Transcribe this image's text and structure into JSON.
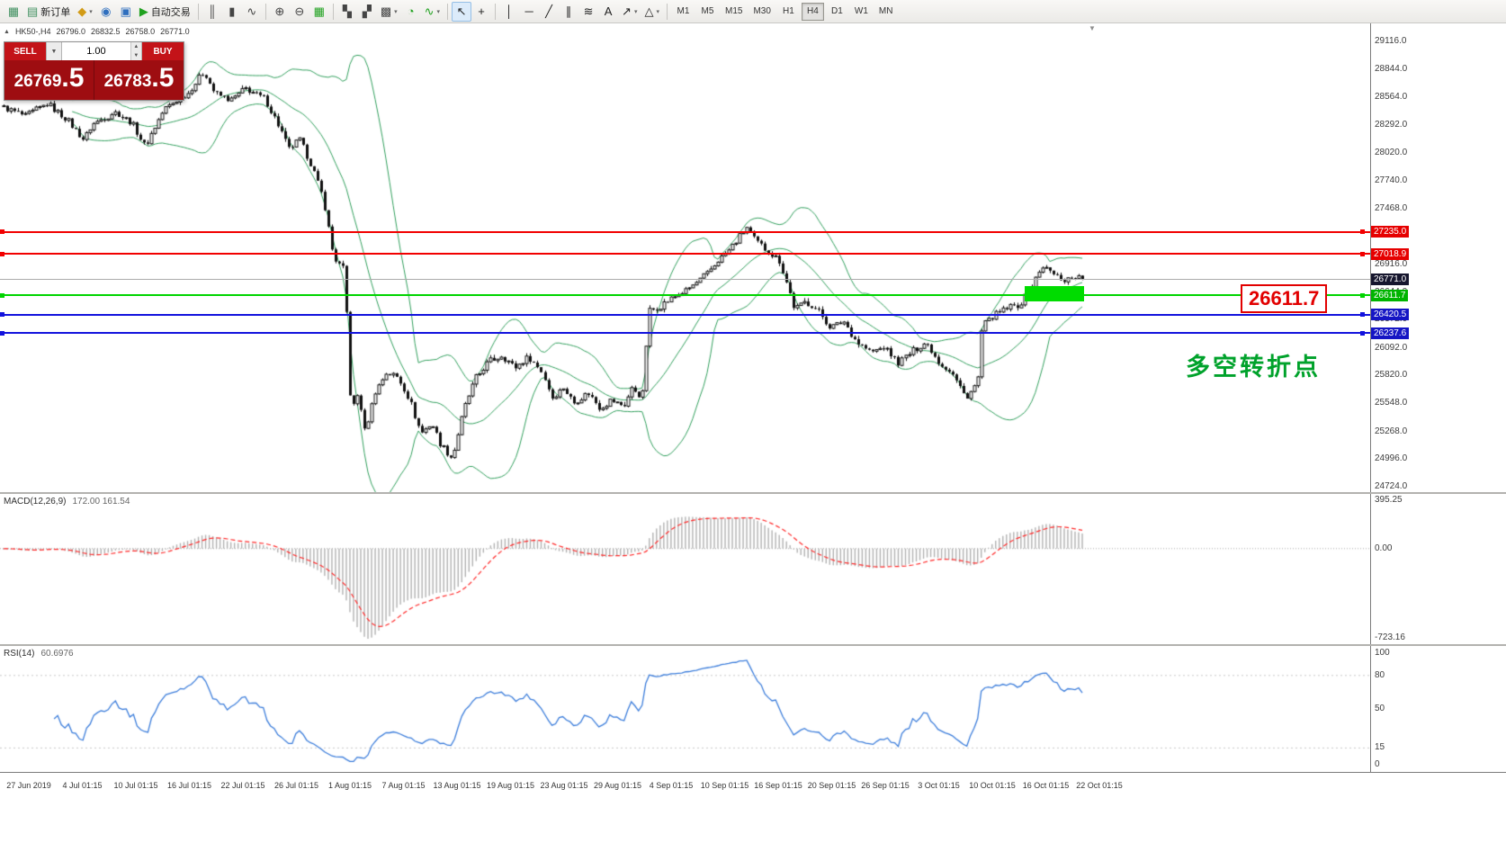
{
  "toolbar": {
    "groups": [
      {
        "items": [
          {
            "name": "new-chart",
            "glyph": "▦",
            "color": "#3f8f5f"
          },
          {
            "name": "new-order",
            "glyph": "▤",
            "color": "#3f8f5f",
            "label": "新订单"
          },
          {
            "name": "chart-profiles",
            "glyph": "◆",
            "color": "#d29b16",
            "dropdown": true
          },
          {
            "name": "market-watch",
            "glyph": "◉",
            "color": "#2f6fbe"
          },
          {
            "name": "data-window",
            "glyph": "▣",
            "color": "#2f6fbe"
          },
          {
            "name": "algo-trading",
            "glyph": "▶",
            "color": "#1fa11f",
            "label": "自动交易"
          }
        ]
      },
      {
        "items": [
          {
            "name": "chart-bars",
            "glyph": "║",
            "color": "#444"
          },
          {
            "name": "chart-candles",
            "glyph": "▮",
            "color": "#444"
          },
          {
            "name": "chart-line",
            "glyph": "∿",
            "color": "#444"
          }
        ]
      },
      {
        "items": [
          {
            "name": "zoom-in",
            "glyph": "⊕",
            "color": "#444"
          },
          {
            "name": "zoom-out",
            "glyph": "⊖",
            "color": "#444"
          },
          {
            "name": "strategy-tester",
            "glyph": "▦",
            "color": "#1fa11f"
          }
        ]
      },
      {
        "items": [
          {
            "name": "tile-windows",
            "glyph": "▚",
            "color": "#444"
          },
          {
            "name": "auto-arrange",
            "glyph": "▞",
            "color": "#444"
          },
          {
            "name": "objects-list",
            "glyph": "▩",
            "color": "#444",
            "dropdown": true
          },
          {
            "name": "history-center",
            "glyph": "◔",
            "color": "#1fa11f"
          },
          {
            "name": "indicators",
            "glyph": "∿",
            "color": "#1fa11f",
            "dropdown": true
          }
        ]
      },
      {
        "items": [
          {
            "name": "cursor",
            "glyph": "↖",
            "color": "#222",
            "active": true
          },
          {
            "name": "crosshair",
            "glyph": "+",
            "color": "#222"
          }
        ]
      },
      {
        "items": [
          {
            "name": "vertical-line",
            "glyph": "│",
            "color": "#222"
          },
          {
            "name": "horizontal-line",
            "glyph": "─",
            "color": "#222"
          },
          {
            "name": "trendline",
            "glyph": "╱",
            "color": "#222"
          },
          {
            "name": "equidistant-channel",
            "glyph": "∥",
            "color": "#222"
          },
          {
            "name": "fibonacci",
            "glyph": "≋",
            "color": "#222"
          },
          {
            "name": "text-label",
            "glyph": "A",
            "color": "#222"
          },
          {
            "name": "arrows",
            "glyph": "↗",
            "color": "#222",
            "dropdown": true
          },
          {
            "name": "shapes",
            "glyph": "△",
            "color": "#222",
            "dropdown": true
          }
        ]
      }
    ],
    "timeframes": [
      "M1",
      "M5",
      "M15",
      "M30",
      "H1",
      "H4",
      "D1",
      "W1",
      "MN"
    ],
    "active_timeframe": "H4",
    "right_items": [
      {
        "name": "quick-edit",
        "glyph": "✎"
      },
      {
        "name": "toolbar-menu",
        "glyph": "≡"
      }
    ]
  },
  "quote_header": {
    "symbol": "HK50-,H4",
    "open": "26796.0",
    "high": "26832.5",
    "low": "26758.0",
    "close": "26771.0"
  },
  "trade_panel": {
    "sell_label": "SELL",
    "buy_label": "BUY",
    "volume": "1.00",
    "sell_price_main": "26769",
    "sell_price_pips": ".5",
    "buy_price_main": "26783",
    "buy_price_pips": ".5"
  },
  "price_axis": {
    "max": 29116.0,
    "min": 24724.0,
    "ticks": [
      "29116.0",
      "28844.0",
      "28564.0",
      "28292.0",
      "28020.0",
      "27740.0",
      "27468.0",
      "27196.0",
      "26916.0",
      "26644.0",
      "26372.0",
      "26092.0",
      "25820.0",
      "25548.0",
      "25268.0",
      "24996.0",
      "24724.0"
    ]
  },
  "levels": [
    {
      "name": "resistance-line-27235",
      "value": 27235.0,
      "label": "27235.0",
      "line_color": "#f20000",
      "badge_color": "#e60000",
      "type": "red"
    },
    {
      "name": "resistance-line-27018",
      "value": 27018.9,
      "label": "27018.9",
      "line_color": "#f20000",
      "badge_color": "#e60000",
      "type": "red"
    },
    {
      "name": "current-price-line",
      "value": 26771.0,
      "label": "26771.0",
      "line_color": "#ababab",
      "badge_color": "#16162e",
      "type": "current"
    },
    {
      "name": "pivot-line-26611",
      "value": 26611.7,
      "label": "26611.7",
      "line_color": "#00d400",
      "badge_color": "#00b400",
      "type": "green"
    },
    {
      "name": "support-line-26420",
      "value": 26420.5,
      "label": "26420.5",
      "line_color": "#1212dd",
      "badge_color": "#1515c4",
      "type": "blue"
    },
    {
      "name": "support-line-26237",
      "value": 26237.6,
      "label": "26237.6",
      "line_color": "#1212dd",
      "badge_color": "#1515c4",
      "type": "blue"
    }
  ],
  "annotations": {
    "price_callout": "26611.7",
    "turning_point": "多空转折点",
    "highlight_rect": {
      "t1": 0.945,
      "t2": 1.0,
      "price_top": 26700,
      "price_bottom": 26555
    }
  },
  "macd": {
    "label": "MACD(12,26,9)",
    "values": "172.00 161.54",
    "axis": [
      "395.25",
      "0.00",
      "-723.16"
    ],
    "max": 395.25,
    "min": -723.16
  },
  "rsi": {
    "label": "RSI(14)",
    "value": "60.6976",
    "axis": [
      "100",
      "80",
      "50",
      "15",
      "0"
    ],
    "level_lines": [
      80,
      15
    ]
  },
  "time_axis": {
    "labels": [
      "27 Jun 2019",
      "4 Jul 01:15",
      "10 Jul 01:15",
      "16 Jul 01:15",
      "22 Jul 01:15",
      "26 Jul 01:15",
      "1 Aug 01:15",
      "7 Aug 01:15",
      "13 Aug 01:15",
      "19 Aug 01:15",
      "23 Aug 01:15",
      "29 Aug 01:15",
      "4 Sep 01:15",
      "10 Sep 01:15",
      "16 Sep 01:15",
      "20 Sep 01:15",
      "26 Sep 01:15",
      "3 Oct 01:15",
      "10 Oct 01:15",
      "16 Oct 01:15",
      "22 Oct 01:15"
    ]
  },
  "chart_data": {
    "type": "candlestick",
    "symbol": "HK50-",
    "timeframe": "H4",
    "candle_count": 300,
    "last_close": 26771.0,
    "noise_amp": 40,
    "bands_color": "#33a05e",
    "bollinger": {
      "period": 20,
      "deviation": 2
    },
    "price_path": [
      [
        0.0,
        28480
      ],
      [
        0.023,
        28380
      ],
      [
        0.044,
        28500
      ],
      [
        0.061,
        28350
      ],
      [
        0.077,
        28150
      ],
      [
        0.086,
        28300
      ],
      [
        0.106,
        28420
      ],
      [
        0.123,
        28300
      ],
      [
        0.134,
        28080
      ],
      [
        0.152,
        28450
      ],
      [
        0.173,
        28600
      ],
      [
        0.188,
        28820
      ],
      [
        0.198,
        28600
      ],
      [
        0.213,
        28540
      ],
      [
        0.227,
        28650
      ],
      [
        0.244,
        28550
      ],
      [
        0.258,
        28270
      ],
      [
        0.266,
        28050
      ],
      [
        0.277,
        28150
      ],
      [
        0.289,
        27850
      ],
      [
        0.299,
        27550
      ],
      [
        0.308,
        26980
      ],
      [
        0.317,
        26870
      ],
      [
        0.321,
        26300
      ],
      [
        0.324,
        25450
      ],
      [
        0.331,
        25650
      ],
      [
        0.337,
        25250
      ],
      [
        0.346,
        25650
      ],
      [
        0.357,
        25850
      ],
      [
        0.368,
        25800
      ],
      [
        0.379,
        25560
      ],
      [
        0.389,
        25250
      ],
      [
        0.399,
        25350
      ],
      [
        0.407,
        25150
      ],
      [
        0.418,
        25000
      ],
      [
        0.429,
        25500
      ],
      [
        0.439,
        25780
      ],
      [
        0.451,
        25950
      ],
      [
        0.464,
        26020
      ],
      [
        0.476,
        25900
      ],
      [
        0.489,
        26000
      ],
      [
        0.501,
        25850
      ],
      [
        0.51,
        25600
      ],
      [
        0.52,
        25700
      ],
      [
        0.53,
        25550
      ],
      [
        0.543,
        25650
      ],
      [
        0.554,
        25500
      ],
      [
        0.564,
        25580
      ],
      [
        0.576,
        25520
      ],
      [
        0.584,
        25700
      ],
      [
        0.593,
        25600
      ],
      [
        0.599,
        26450
      ],
      [
        0.609,
        26500
      ],
      [
        0.62,
        26580
      ],
      [
        0.632,
        26650
      ],
      [
        0.643,
        26730
      ],
      [
        0.653,
        26820
      ],
      [
        0.663,
        26950
      ],
      [
        0.673,
        27050
      ],
      [
        0.684,
        27200
      ],
      [
        0.69,
        27280
      ],
      [
        0.698,
        27150
      ],
      [
        0.709,
        27050
      ],
      [
        0.72,
        26950
      ],
      [
        0.728,
        26700
      ],
      [
        0.734,
        26480
      ],
      [
        0.745,
        26550
      ],
      [
        0.757,
        26450
      ],
      [
        0.767,
        26300
      ],
      [
        0.78,
        26350
      ],
      [
        0.792,
        26150
      ],
      [
        0.805,
        26050
      ],
      [
        0.817,
        26100
      ],
      [
        0.83,
        25950
      ],
      [
        0.842,
        26050
      ],
      [
        0.855,
        26150
      ],
      [
        0.867,
        25950
      ],
      [
        0.879,
        25850
      ],
      [
        0.892,
        25600
      ],
      [
        0.903,
        25750
      ],
      [
        0.907,
        26300
      ],
      [
        0.917,
        26400
      ],
      [
        0.929,
        26480
      ],
      [
        0.942,
        26520
      ],
      [
        0.953,
        26700
      ],
      [
        0.963,
        26900
      ],
      [
        0.973,
        26820
      ],
      [
        0.983,
        26760
      ],
      [
        0.994,
        26800
      ],
      [
        1.0,
        26771
      ]
    ]
  }
}
